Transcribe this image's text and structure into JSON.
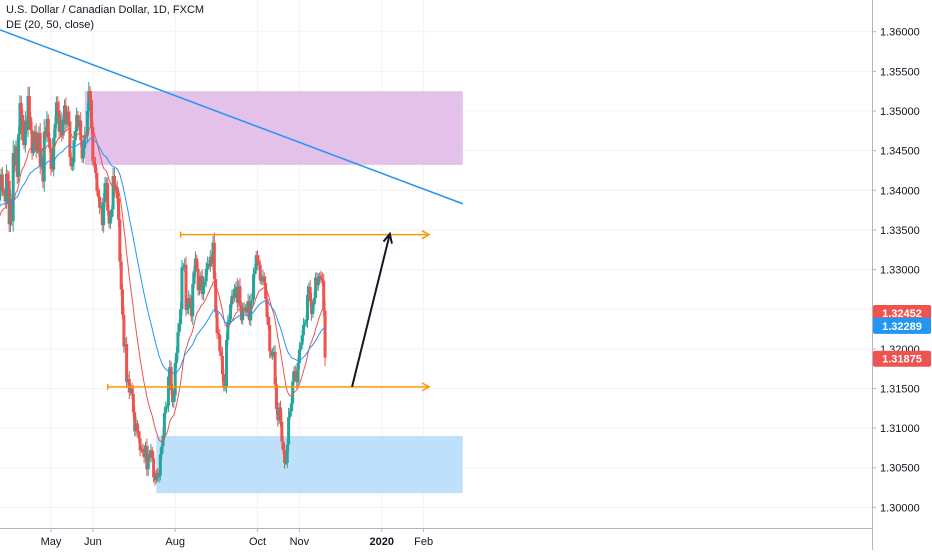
{
  "chart_data": {
    "type": "candlestick",
    "title": "U.S. Dollar / Canadian Dollar, 1D, FXCM",
    "indicator_label": "DE (20, 50, close)",
    "y_ticks": [
      "1.36000",
      "1.35500",
      "1.35000",
      "1.34500",
      "1.34000",
      "1.33500",
      "1.33000",
      "1.32500",
      "1.32000",
      "1.31500",
      "1.31000",
      "1.30500",
      "1.30000"
    ],
    "ylim": [
      1.2974,
      1.364
    ],
    "x_ticks": [
      "May",
      "Jun",
      "Aug",
      "Oct",
      "Nov",
      "2020",
      "Feb"
    ],
    "price_labels": [
      {
        "text": "1.32452",
        "value": 1.32452,
        "color": "#ef5350"
      },
      {
        "text": "1.32289",
        "value": 1.32289,
        "color": "#2196f3"
      },
      {
        "text": "1.31875",
        "value": 1.31875,
        "color": "#ef5350"
      }
    ],
    "colors": {
      "up": "#26a69a",
      "down": "#ef5350",
      "ema20": "#ef5350",
      "ema50": "#2196f3",
      "trendline": "#2196f3",
      "level": "#ff9800",
      "resistance_zone": "#e1bee7",
      "support_zone": "#bbdefb",
      "arrow": "#131722"
    },
    "zones": [
      {
        "name": "resistance",
        "from_date": "2019-05-26",
        "to_date": "2020-03-01",
        "top": 1.3525,
        "bottom": 1.3432
      },
      {
        "name": "support",
        "from_date": "2019-07-18",
        "to_date": "2020-03-01",
        "top": 1.309,
        "bottom": 1.3018
      }
    ],
    "levels": [
      {
        "value": 1.3344,
        "from_date": "2019-08-05",
        "to_date": "2020-02-05"
      },
      {
        "value": 1.3152,
        "from_date": "2019-06-12",
        "to_date": "2020-02-05"
      }
    ],
    "trendline": {
      "from": {
        "date": "2019-02-17",
        "value": 1.3625
      },
      "to": {
        "date": "2020-03-01",
        "value": 1.3383
      }
    },
    "projection_arrow": {
      "from": {
        "date": "2019-12-10",
        "value": 1.3152
      },
      "to": {
        "date": "2020-01-07",
        "value": 1.3345
      }
    },
    "series": [
      {
        "name": "USDCAD",
        "date_start": "2019-03-05",
        "step_days": 1.0,
        "closes": [
          1.34,
          1.3448,
          1.3443,
          1.3439,
          1.3401,
          1.3372,
          1.3345,
          1.3292,
          1.3329,
          1.3358,
          1.3349,
          1.3301,
          1.3306,
          1.3329,
          1.3353,
          1.3382,
          1.3372,
          1.3337,
          1.3387,
          1.3399,
          1.342,
          1.34,
          1.3396,
          1.3386,
          1.3421,
          1.3412,
          1.3357,
          1.3389,
          1.3361,
          1.3447,
          1.3431,
          1.3455,
          1.3417,
          1.3471,
          1.351,
          1.3495,
          1.3463,
          1.3457,
          1.3488,
          1.3476,
          1.3519,
          1.3492,
          1.3476,
          1.3447,
          1.3458,
          1.3474,
          1.3449,
          1.3449,
          1.3472,
          1.3431,
          1.3444,
          1.3411,
          1.3474,
          1.3468,
          1.349,
          1.3466,
          1.3453,
          1.3427,
          1.3426,
          1.3466,
          1.3484,
          1.3511,
          1.3501,
          1.3474,
          1.3489,
          1.3469,
          1.3489,
          1.3507,
          1.3483,
          1.3499,
          1.3487,
          1.3442,
          1.343,
          1.3435,
          1.3463,
          1.3474,
          1.3495,
          1.348,
          1.3488,
          1.3463,
          1.344,
          1.3453,
          1.347,
          1.3469,
          1.35,
          1.3525,
          1.3514,
          1.348,
          1.3437,
          1.3433,
          1.3422,
          1.3399,
          1.3392,
          1.3378,
          1.3381,
          1.3356,
          1.3385,
          1.3409,
          1.3409,
          1.3374,
          1.3358,
          1.3366,
          1.3376,
          1.3418,
          1.34,
          1.3404,
          1.339,
          1.3363,
          1.331,
          1.3275,
          1.3243,
          1.3203,
          1.3206,
          1.3158,
          1.3162,
          1.3145,
          1.315,
          1.3143,
          1.312,
          1.3096,
          1.3106,
          1.3096,
          1.3087,
          1.3072,
          1.3074,
          1.307,
          1.3063,
          1.3077,
          1.3048,
          1.3067,
          1.3063,
          1.3072,
          1.3062,
          1.3038,
          1.3034,
          1.3043,
          1.3038,
          1.304,
          1.3067,
          1.3077,
          1.3091,
          1.3119,
          1.3126,
          1.3128,
          1.3165,
          1.3177,
          1.3148,
          1.3133,
          1.3141,
          1.3182,
          1.3195,
          1.3221,
          1.3231,
          1.325,
          1.3303,
          1.3303,
          1.3306,
          1.3249,
          1.3251,
          1.3264,
          1.3259,
          1.3241,
          1.3282,
          1.3298,
          1.3314,
          1.3301,
          1.3274,
          1.3275,
          1.3292,
          1.3269,
          1.3281,
          1.3285,
          1.3301,
          1.3307,
          1.3304,
          1.3316,
          1.3307,
          1.3334,
          1.3288,
          1.3246,
          1.322,
          1.3218,
          1.3197,
          1.3191,
          1.3168,
          1.3152,
          1.3152,
          1.3211,
          1.3234,
          1.3237,
          1.3256,
          1.3267,
          1.3264,
          1.3276,
          1.3278,
          1.3258,
          1.3279,
          1.3255,
          1.3236,
          1.3251,
          1.3248,
          1.3252,
          1.3246,
          1.326,
          1.3236,
          1.326,
          1.3262,
          1.3294,
          1.3299,
          1.3318,
          1.331,
          1.3306,
          1.3286,
          1.3287,
          1.3291,
          1.3283,
          1.3263,
          1.324,
          1.323,
          1.3197,
          1.3191,
          1.3195,
          1.3196,
          1.3155,
          1.3124,
          1.311,
          1.3126,
          1.3108,
          1.3083,
          1.3072,
          1.3056,
          1.3056,
          1.3079,
          1.3114,
          1.3121,
          1.3131,
          1.3159,
          1.3172,
          1.3167,
          1.3158,
          1.3182,
          1.3199,
          1.3205,
          1.3217,
          1.323,
          1.3233,
          1.3236,
          1.3268,
          1.3278,
          1.326,
          1.3244,
          1.3256,
          1.3264,
          1.329,
          1.328,
          1.3287,
          1.3292,
          1.3288,
          1.3286,
          1.3248,
          1.3189
        ]
      }
    ]
  }
}
